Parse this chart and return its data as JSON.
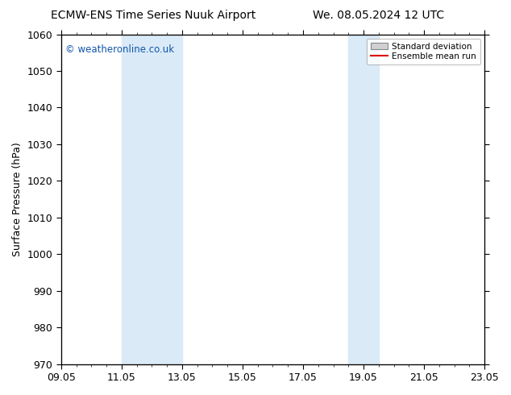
{
  "title_left": "ECMW-ENS Time Series Nuuk Airport",
  "title_right": "We. 08.05.2024 12 UTC",
  "ylabel": "Surface Pressure (hPa)",
  "ylim": [
    970,
    1060
  ],
  "yticks": [
    970,
    980,
    990,
    1000,
    1010,
    1020,
    1030,
    1040,
    1050,
    1060
  ],
  "xlim_start": 0,
  "xlim_end": 14,
  "xtick_positions": [
    0,
    2,
    4,
    6,
    8,
    10,
    12,
    14
  ],
  "xtick_labels": [
    "09.05",
    "11.05",
    "13.05",
    "15.05",
    "17.05",
    "19.05",
    "21.05",
    "23.05"
  ],
  "shade_bands": [
    {
      "x_start": 2,
      "x_end": 4,
      "color": "#daeaf7",
      "alpha": 1.0
    },
    {
      "x_start": 9.5,
      "x_end": 10.5,
      "color": "#daeaf7",
      "alpha": 1.0
    }
  ],
  "watermark": "© weatheronline.co.uk",
  "watermark_color": "#1155aa",
  "legend_std_color": "#d0d0d0",
  "legend_mean_color": "#dd0000",
  "background_color": "#ffffff",
  "title_fontsize": 10,
  "axis_fontsize": 9,
  "tick_fontsize": 9
}
